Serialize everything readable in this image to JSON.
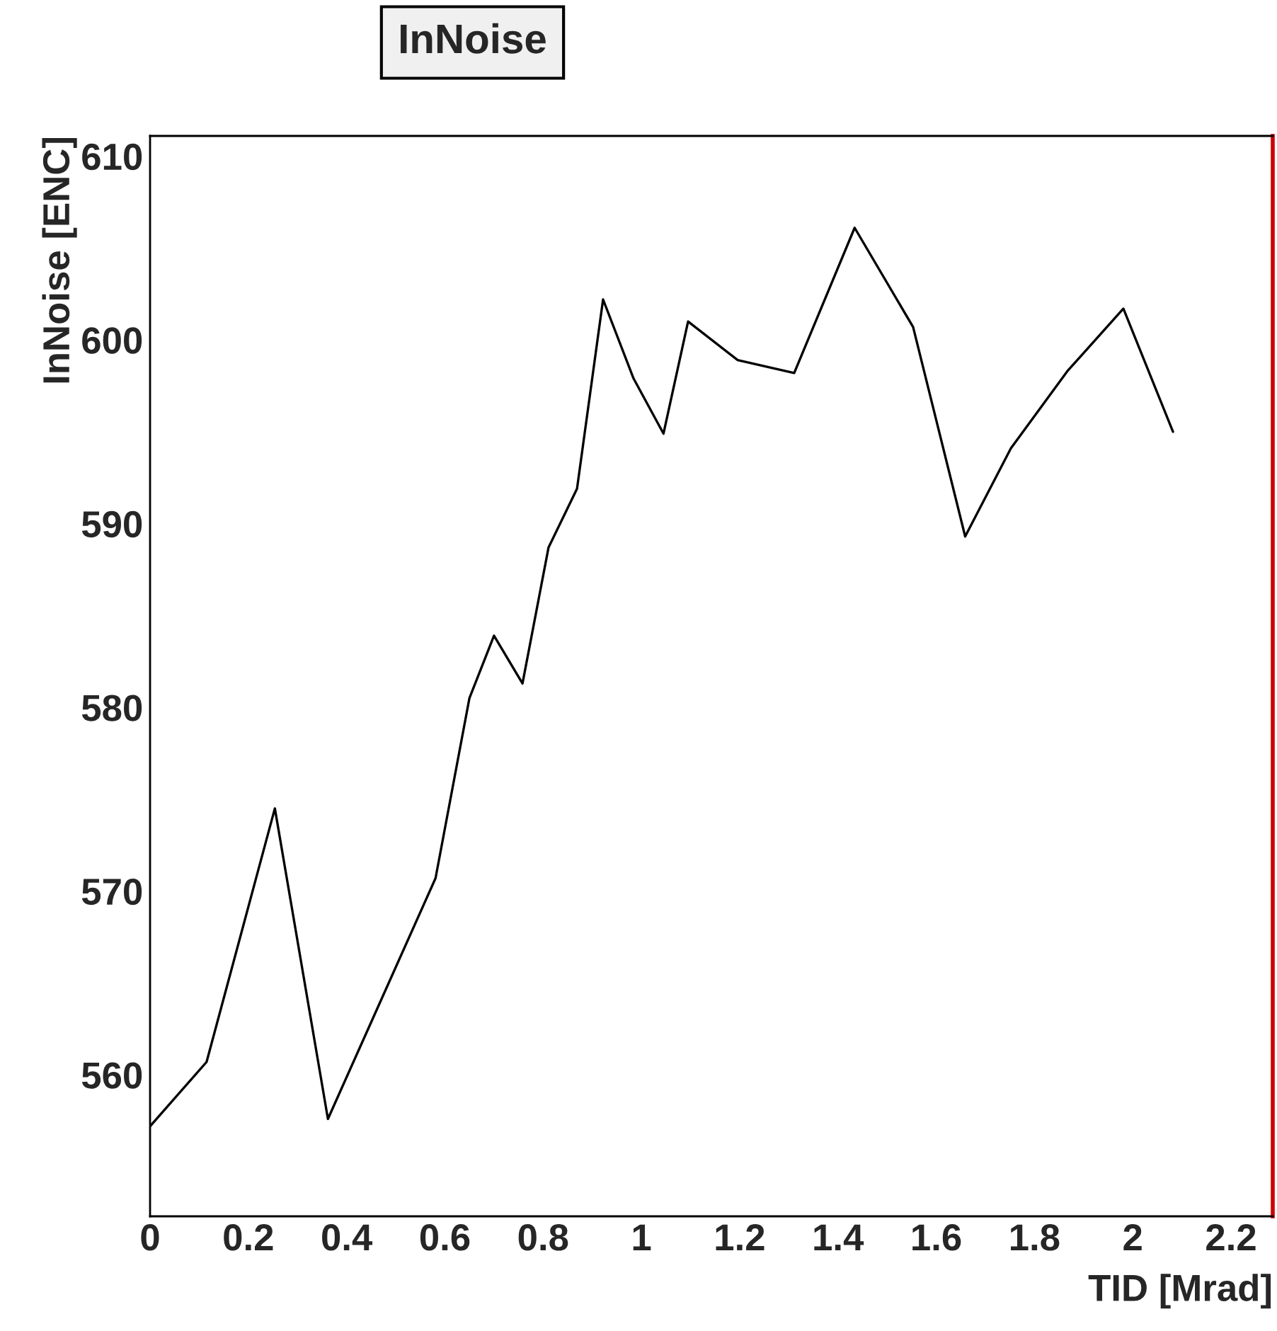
{
  "chart_data": {
    "type": "line",
    "title": "InNoise",
    "xlabel": "TID [Mrad]",
    "ylabel": "InNoise [ENC]",
    "x": [
      0,
      0.115,
      0.254,
      0.362,
      0.581,
      0.65,
      0.7,
      0.758,
      0.811,
      0.869,
      0.922,
      0.984,
      1.045,
      1.095,
      1.196,
      1.311,
      1.434,
      1.553,
      1.659,
      1.752,
      1.867,
      1.981,
      2.082
    ],
    "series": [
      {
        "color": "#000000",
        "values": [
          557.2,
          560.7,
          574.5,
          557.6,
          570.7,
          580.5,
          583.9,
          581.3,
          588.7,
          591.9,
          602.2,
          597.9,
          594.9,
          601.0,
          598.9,
          598.2,
          606.1,
          600.7,
          589.3,
          594.1,
          598.3,
          601.7,
          595.0
        ]
      }
    ],
    "xlim": [
      0,
      2.285
    ],
    "ylim": [
      552.3,
      611.1
    ],
    "xticks": [
      0,
      0.2,
      0.4,
      0.6,
      0.8,
      1,
      1.2,
      1.4,
      1.6,
      1.8,
      2,
      2.2
    ],
    "yticks": [
      560,
      570,
      580,
      590,
      600,
      610
    ],
    "grid": false,
    "legend": false,
    "marker": "none",
    "line_style": "solid"
  }
}
